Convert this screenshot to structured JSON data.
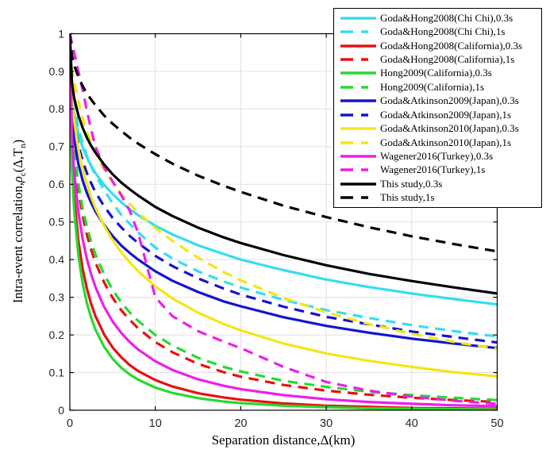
{
  "figure": {
    "xlabel": "Separation distance,Δ(km)",
    "ylabel": {
      "prefix": "Intra-event correlation,",
      "rho": "ρ",
      "rho_sub": "c",
      "mid": "(Δ,T",
      "t_sub": "n",
      "suffix": ")"
    },
    "x_tick_labels": [
      "0",
      "10",
      "20",
      "30",
      "40",
      "50"
    ],
    "y_tick_labels": [
      "0",
      "0.1",
      "0.2",
      "0.3",
      "0.4",
      "0.5",
      "0.6",
      "0.7",
      "0.8",
      "0.9",
      "1"
    ],
    "grid_color": "#e0e0e0",
    "axis_color": "#000000",
    "tick_label_color": "#262626",
    "background": "#ffffff"
  },
  "chart_data": {
    "type": "line",
    "title": "",
    "xlabel": "Separation distance,Δ(km)",
    "ylabel": "Intra-event correlation,ρc(Δ,Tn)",
    "xlim": [
      0,
      50
    ],
    "ylim": [
      0,
      1
    ],
    "x_ticks": [
      0,
      10,
      20,
      30,
      40,
      50
    ],
    "y_ticks": [
      0,
      0.1,
      0.2,
      0.3,
      0.4,
      0.5,
      0.6,
      0.7,
      0.8,
      0.9,
      1
    ],
    "grid": true,
    "legend_position": "top-right",
    "x": [
      0,
      0.25,
      0.5,
      1,
      1.5,
      2,
      2.5,
      3,
      4,
      5,
      6,
      7,
      8,
      10,
      12,
      15,
      18,
      20,
      25,
      30,
      35,
      40,
      45,
      50
    ],
    "series": [
      {
        "name": "Goda&Hong2008(Chi Chi),0.3s",
        "color": "#35ddee",
        "line_style": "solid",
        "values": [
          1,
          0.83,
          0.79,
          0.733,
          0.698,
          0.671,
          0.649,
          0.63,
          0.599,
          0.574,
          0.553,
          0.534,
          0.518,
          0.49,
          0.467,
          0.438,
          0.415,
          0.4,
          0.372,
          0.347,
          0.327,
          0.31,
          0.295,
          0.281
        ]
      },
      {
        "name": "Goda&Hong2008(Chi Chi),1s",
        "color": "#35ddee",
        "line_style": "dashed",
        "values": [
          1,
          0.855,
          0.81,
          0.75,
          0.71,
          0.675,
          0.648,
          0.625,
          0.585,
          0.55,
          0.52,
          0.495,
          0.472,
          0.432,
          0.403,
          0.369,
          0.342,
          0.326,
          0.293,
          0.266,
          0.245,
          0.226,
          0.21,
          0.196
        ]
      },
      {
        "name": "Goda&Hong2008(California),0.3s",
        "color": "#e51212",
        "line_style": "solid",
        "values": [
          1,
          0.67,
          0.568,
          0.449,
          0.375,
          0.323,
          0.282,
          0.25,
          0.202,
          0.167,
          0.141,
          0.12,
          0.104,
          0.08,
          0.063,
          0.045,
          0.034,
          0.028,
          0.018,
          0.012,
          0.009,
          0.006,
          0.005,
          0.004
        ]
      },
      {
        "name": "Goda&Hong2008(California),1s",
        "color": "#e51212",
        "line_style": "dashed",
        "values": [
          1,
          0.763,
          0.683,
          0.583,
          0.516,
          0.466,
          0.426,
          0.392,
          0.34,
          0.299,
          0.266,
          0.24,
          0.217,
          0.181,
          0.154,
          0.123,
          0.101,
          0.089,
          0.067,
          0.052,
          0.041,
          0.033,
          0.027,
          0.022
        ]
      },
      {
        "name": "Hong2009(California),0.3s",
        "color": "#28d92e",
        "line_style": "solid",
        "values": [
          1,
          0.641,
          0.533,
          0.411,
          0.336,
          0.284,
          0.245,
          0.214,
          0.169,
          0.137,
          0.113,
          0.095,
          0.081,
          0.06,
          0.046,
          0.032,
          0.023,
          0.019,
          0.012,
          0.008,
          0.005,
          0.004,
          0.003,
          0.002
        ]
      },
      {
        "name": "Hong2009(California),1s",
        "color": "#28d92e",
        "line_style": "dashed",
        "values": [
          1,
          0.775,
          0.698,
          0.601,
          0.536,
          0.487,
          0.447,
          0.414,
          0.361,
          0.32,
          0.287,
          0.26,
          0.237,
          0.2,
          0.172,
          0.139,
          0.115,
          0.103,
          0.078,
          0.062,
          0.049,
          0.04,
          0.033,
          0.027
        ]
      },
      {
        "name": "Goda&Atkinson2009(Japan),0.3s",
        "color": "#1414cc",
        "line_style": "solid",
        "values": [
          1,
          0.775,
          0.72,
          0.654,
          0.61,
          0.577,
          0.551,
          0.528,
          0.492,
          0.463,
          0.438,
          0.418,
          0.4,
          0.369,
          0.344,
          0.314,
          0.289,
          0.276,
          0.247,
          0.224,
          0.206,
          0.19,
          0.177,
          0.165
        ]
      },
      {
        "name": "Goda&Atkinson2009(Japan),1s",
        "color": "#1414cc",
        "line_style": "dashed",
        "values": [
          1,
          0.82,
          0.769,
          0.705,
          0.662,
          0.63,
          0.603,
          0.579,
          0.542,
          0.511,
          0.486,
          0.463,
          0.444,
          0.41,
          0.383,
          0.35,
          0.323,
          0.307,
          0.275,
          0.248,
          0.228,
          0.209,
          0.194,
          0.18
        ]
      },
      {
        "name": "Goda&Atkinson2010(Japan),0.3s",
        "color": "#f2e616",
        "line_style": "solid",
        "values": [
          1,
          0.829,
          0.77,
          0.694,
          0.64,
          0.6,
          0.566,
          0.537,
          0.49,
          0.452,
          0.42,
          0.393,
          0.369,
          0.329,
          0.297,
          0.259,
          0.229,
          0.212,
          0.177,
          0.151,
          0.131,
          0.115,
          0.101,
          0.09
        ]
      },
      {
        "name": "Goda&Atkinson2010(Japan),1s",
        "color": "#f2e616",
        "line_style": "dashed",
        "values": [
          1,
          0.91,
          0.875,
          0.82,
          0.775,
          0.74,
          0.71,
          0.685,
          0.64,
          0.605,
          0.575,
          0.548,
          0.525,
          0.484,
          0.45,
          0.405,
          0.367,
          0.345,
          0.298,
          0.26,
          0.229,
          0.203,
          0.181,
          0.163
        ]
      },
      {
        "name": "Wagener2016(Turkey),0.3s",
        "color": "#ec1fec",
        "line_style": "solid",
        "values": [
          1,
          0.724,
          0.634,
          0.525,
          0.454,
          0.402,
          0.361,
          0.327,
          0.275,
          0.236,
          0.206,
          0.181,
          0.161,
          0.13,
          0.107,
          0.082,
          0.065,
          0.056,
          0.04,
          0.029,
          0.022,
          0.017,
          0.013,
          0.011
        ]
      },
      {
        "name": "Wagener2016(Turkey),1s",
        "color": "#ec1fec",
        "line_style": "dashed",
        "values": [
          1,
          0.975,
          0.95,
          0.9,
          0.85,
          0.795,
          0.745,
          0.7,
          0.645,
          0.608,
          0.572,
          0.53,
          0.47,
          0.3,
          0.25,
          0.21,
          0.182,
          0.165,
          0.115,
          0.075,
          0.052,
          0.036,
          0.025,
          0.017
        ]
      },
      {
        "name": "This study,0.3s",
        "color": "#000000",
        "line_style": "solid",
        "values": [
          1,
          0.869,
          0.83,
          0.783,
          0.75,
          0.724,
          0.702,
          0.684,
          0.653,
          0.627,
          0.605,
          0.587,
          0.57,
          0.54,
          0.516,
          0.485,
          0.459,
          0.444,
          0.412,
          0.385,
          0.362,
          0.343,
          0.326,
          0.31
        ]
      },
      {
        "name": "This study,1s",
        "color": "#000000",
        "line_style": "dashed",
        "values": [
          1,
          0.941,
          0.917,
          0.885,
          0.861,
          0.841,
          0.825,
          0.81,
          0.783,
          0.761,
          0.742,
          0.724,
          0.708,
          0.68,
          0.655,
          0.623,
          0.596,
          0.58,
          0.543,
          0.513,
          0.486,
          0.462,
          0.441,
          0.422
        ]
      }
    ]
  }
}
